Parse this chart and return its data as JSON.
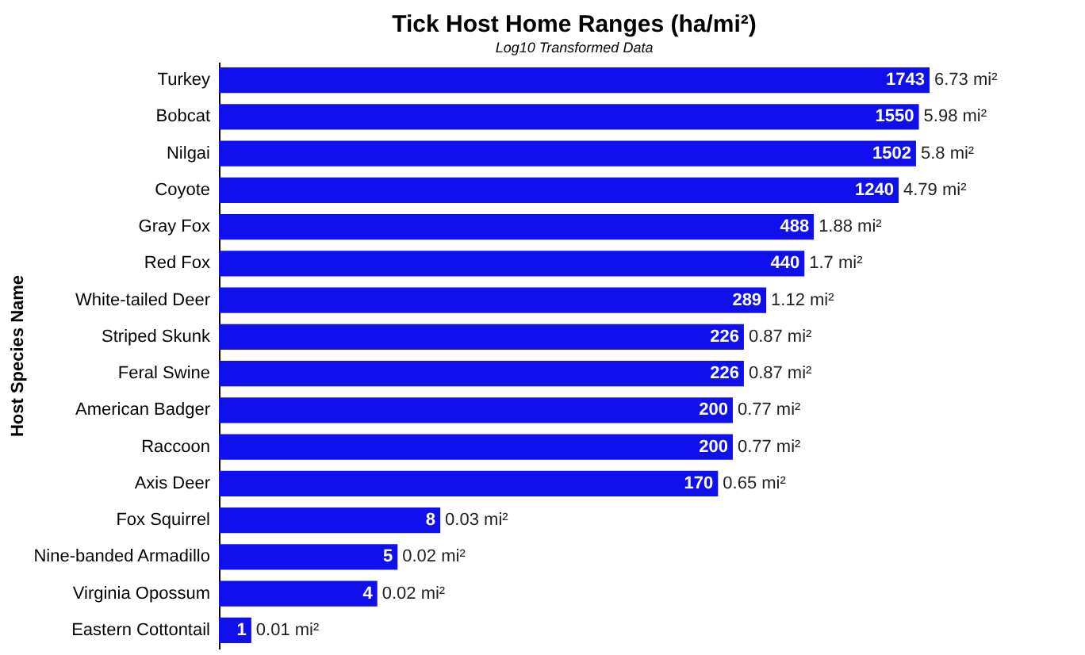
{
  "chart_data": {
    "type": "bar",
    "orientation": "horizontal",
    "title": "Tick Host Home Ranges (ha/mi²)",
    "subtitle": "Log10 Transformed Data",
    "ylabel": "Host Species Name",
    "categories": [
      "Turkey",
      "Bobcat",
      "Nilgai",
      "Coyote",
      "Gray Fox",
      "Red Fox",
      "White-tailed Deer",
      "Striped Skunk",
      "Feral Swine",
      "American Badger",
      "Raccoon",
      "Axis Deer",
      "Fox Squirrel",
      "Nine-banded Armadillo",
      "Virginia Opossum",
      "Eastern Cottontail"
    ],
    "values": [
      1743,
      1550,
      1502,
      1240,
      488,
      440,
      289,
      226,
      226,
      200,
      200,
      170,
      8,
      5,
      4,
      1
    ],
    "annotations": [
      {
        "text": "6.73 mi²",
        "x": 1743,
        "y": "Turkey"
      },
      {
        "text": "5.98 mi²",
        "x": 1550,
        "y": "Bobcat"
      },
      {
        "text": "5.8 mi²",
        "x": 1502,
        "y": "Nilgai"
      },
      {
        "text": "4.79 mi²",
        "x": 1240,
        "y": "Coyote"
      },
      {
        "text": "1.88 mi²",
        "x": 488,
        "y": "Gray Fox"
      },
      {
        "text": "1.7 mi²",
        "x": 440,
        "y": "Red Fox"
      },
      {
        "text": "1.12 mi²",
        "x": 289,
        "y": "White-tailed Deer"
      },
      {
        "text": "0.87 mi²",
        "x": 226,
        "y": "Striped Skunk"
      },
      {
        "text": "0.87 mi²",
        "x": 226,
        "y": "Feral Swine"
      },
      {
        "text": "0.77 mi²",
        "x": 200,
        "y": "American Badger"
      },
      {
        "text": "0.77 mi²",
        "x": 200,
        "y": "Raccoon"
      },
      {
        "text": "0.65 mi²",
        "x": 170,
        "y": "Axis Deer"
      },
      {
        "text": "0.03 mi²",
        "x": 8,
        "y": "Fox Squirrel"
      },
      {
        "text": "0.02 mi²",
        "x": 5,
        "y": "Nine-banded Armadillo"
      },
      {
        "text": "0.02 mi²",
        "x": 4,
        "y": "Virginia Opossum"
      },
      {
        "text": "0.01 mi²",
        "x": 1,
        "y": "Eastern Cottontail"
      }
    ],
    "color": "#1010ee",
    "log": "x",
    "xlim": [
      0.7,
      1743
    ],
    "data_labels": true,
    "tick_labels": "y"
  }
}
